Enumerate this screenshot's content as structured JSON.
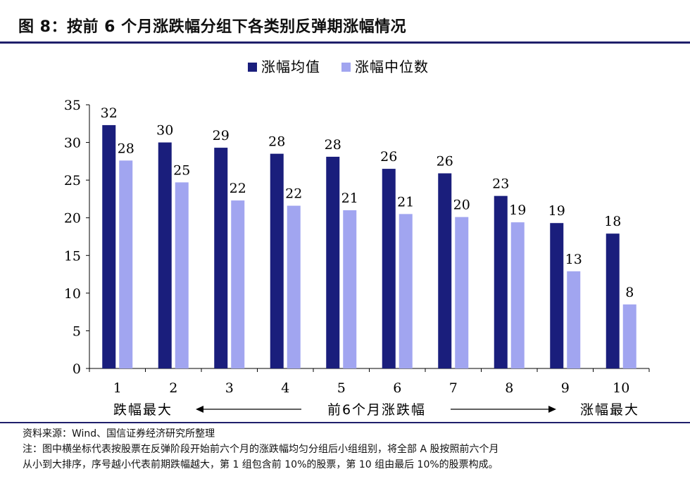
{
  "header": {
    "title": "图 8：按前 6 个月涨跌幅分组下各类别反弹期涨幅情况"
  },
  "chart_data": {
    "type": "bar",
    "categories": [
      "1",
      "2",
      "3",
      "4",
      "5",
      "6",
      "7",
      "8",
      "9",
      "10"
    ],
    "series": [
      {
        "name": "涨幅均值",
        "color": "#1a1e7c",
        "values": [
          32.3,
          30.0,
          29.3,
          28.5,
          28.1,
          26.5,
          25.9,
          22.9,
          19.3,
          17.9
        ],
        "labels": [
          "32",
          "30",
          "29",
          "28",
          "28",
          "26",
          "26",
          "23",
          "19",
          "18"
        ]
      },
      {
        "name": "涨幅中位数",
        "color": "#a1a5f0",
        "values": [
          27.6,
          24.7,
          22.3,
          21.6,
          21.0,
          20.5,
          20.1,
          19.4,
          12.9,
          8.5
        ],
        "labels": [
          "28",
          "25",
          "22",
          "22",
          "21",
          "21",
          "20",
          "19",
          "13",
          "8"
        ]
      }
    ],
    "ylim": [
      0,
      35
    ],
    "yticks": [
      "0",
      "5",
      "10",
      "15",
      "20",
      "25",
      "30",
      "35"
    ],
    "legend_position": "top-center",
    "grid": false,
    "xaxis_annotation": {
      "left_label": "跌幅最大",
      "center_label": "前6个月涨跌幅",
      "right_label": "涨幅最大"
    }
  },
  "footer": {
    "source": "资料来源：Wind、国信证券经济研究所整理",
    "note_line1": "注：图中横坐标代表按股票在反弹阶段开始前六个月的涨跌幅均匀分组后小组组别，将全部 A 股按照前六个月",
    "note_line2": "从小到大排序，序号越小代表前期跌幅越大，第 1 组包含前 10%的股票，第 10 组由最后 10%的股票构成。"
  }
}
